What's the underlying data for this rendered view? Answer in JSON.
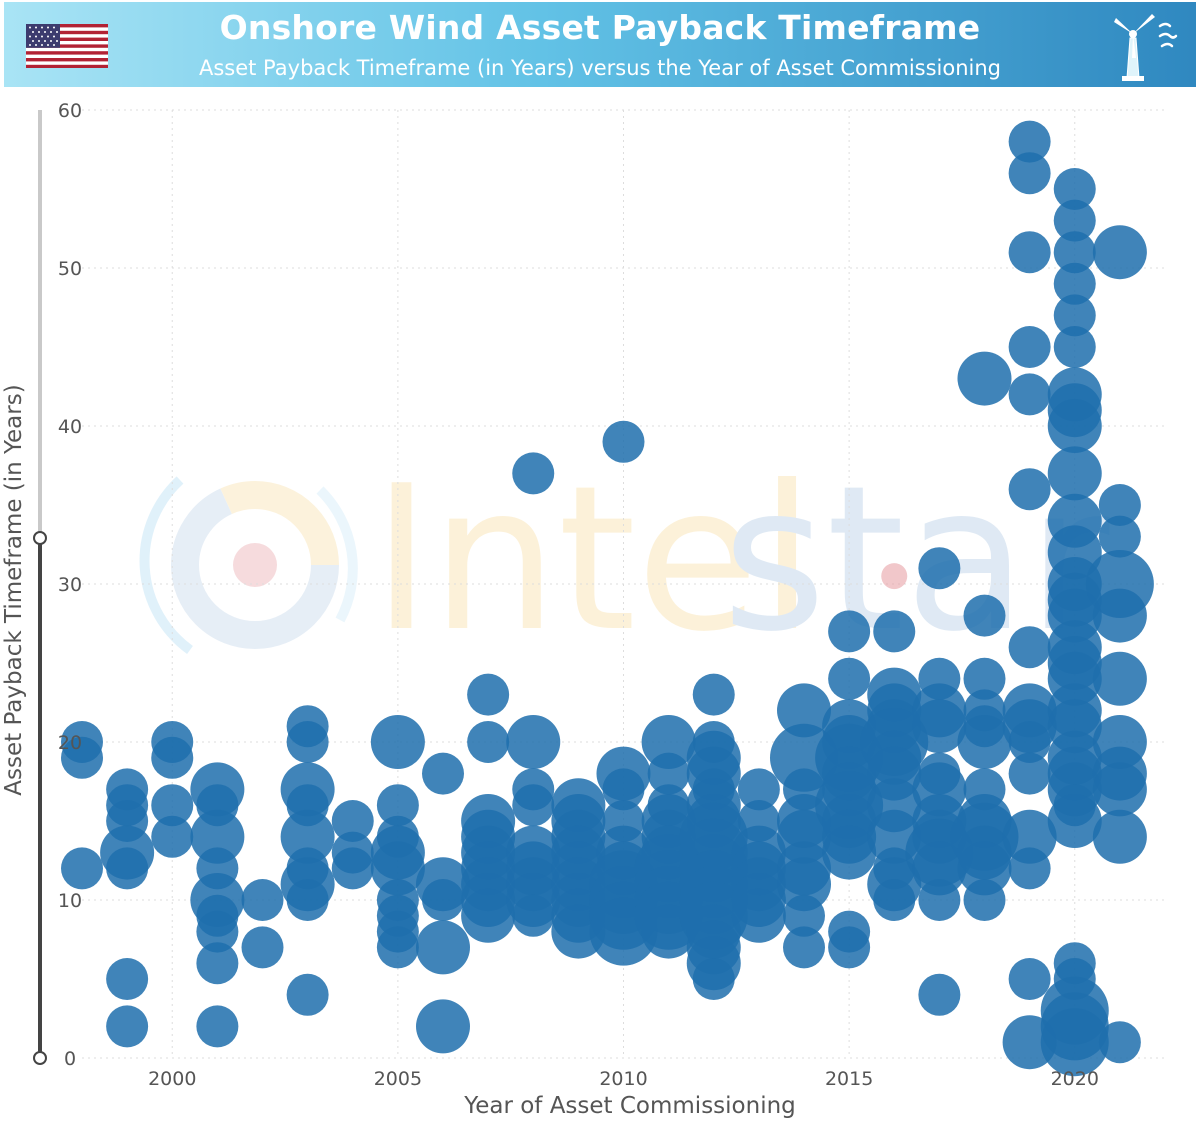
{
  "header": {
    "title": "Onshore Wind Asset Payback Timeframe",
    "subtitle": "Asset Payback Timeframe (in Years) versus the Year of Asset Commissioning",
    "flag_icon": "us-flag-icon",
    "logo_icon": "wind-turbine-icon"
  },
  "watermark": {
    "text_a": "Intel",
    "text_b": "star"
  },
  "colors": {
    "bubble": "#1f6fad",
    "header_left": "#a9e4f5",
    "header_right": "#2f88c0"
  },
  "chart_data": {
    "type": "scatter",
    "title": "Onshore Wind Asset Payback Timeframe",
    "subtitle": "Asset Payback Timeframe (in Years) versus the Year of Asset Commissioning",
    "xlabel": "Year of Asset Commissioning",
    "ylabel": "Asset Payback Timeframe (in Years)",
    "xlim": [
      1998,
      2022
    ],
    "ylim": [
      0,
      60
    ],
    "xticks": [
      "2000",
      "2005",
      "2010",
      "2015",
      "2020"
    ],
    "yticks": [
      "0",
      "10",
      "20",
      "30",
      "40",
      "50",
      "60"
    ],
    "grid": true,
    "marker_size_note": "bubble size varies by asset",
    "points": [
      [
        1998,
        20,
        2
      ],
      [
        1998,
        19,
        2
      ],
      [
        1998,
        12,
        2
      ],
      [
        1999,
        17,
        2
      ],
      [
        1999,
        16,
        2
      ],
      [
        1999,
        15,
        2
      ],
      [
        1999,
        13,
        3
      ],
      [
        1999,
        12,
        2
      ],
      [
        1999,
        5,
        2
      ],
      [
        1999,
        2,
        2
      ],
      [
        2000,
        20,
        2
      ],
      [
        2000,
        19,
        2
      ],
      [
        2000,
        16,
        2
      ],
      [
        2000,
        14,
        2
      ],
      [
        2001,
        17,
        3
      ],
      [
        2001,
        16,
        2
      ],
      [
        2001,
        14,
        3
      ],
      [
        2001,
        12,
        2
      ],
      [
        2001,
        10,
        3
      ],
      [
        2001,
        9,
        2
      ],
      [
        2001,
        8,
        2
      ],
      [
        2001,
        6,
        2
      ],
      [
        2001,
        2,
        2
      ],
      [
        2002,
        10,
        2
      ],
      [
        2002,
        7,
        2
      ],
      [
        2003,
        21,
        2
      ],
      [
        2003,
        20,
        2
      ],
      [
        2003,
        17,
        3
      ],
      [
        2003,
        16,
        2
      ],
      [
        2003,
        14,
        3
      ],
      [
        2003,
        12,
        2
      ],
      [
        2003,
        11,
        3
      ],
      [
        2003,
        10,
        2
      ],
      [
        2003,
        4,
        2
      ],
      [
        2004,
        15,
        2
      ],
      [
        2004,
        13,
        2
      ],
      [
        2004,
        12,
        2
      ],
      [
        2005,
        20,
        3
      ],
      [
        2005,
        16,
        2
      ],
      [
        2005,
        14,
        2
      ],
      [
        2005,
        13,
        3
      ],
      [
        2005,
        12,
        3
      ],
      [
        2005,
        10,
        2
      ],
      [
        2005,
        9,
        2
      ],
      [
        2005,
        8,
        2
      ],
      [
        2005,
        7,
        2
      ],
      [
        2006,
        18,
        2
      ],
      [
        2006,
        11,
        3
      ],
      [
        2006,
        10,
        2
      ],
      [
        2006,
        7,
        3
      ],
      [
        2006,
        2,
        3
      ],
      [
        2007,
        23,
        2
      ],
      [
        2007,
        20,
        2
      ],
      [
        2007,
        15,
        3
      ],
      [
        2007,
        14,
        3
      ],
      [
        2007,
        13,
        3
      ],
      [
        2007,
        12,
        3
      ],
      [
        2007,
        11,
        3
      ],
      [
        2007,
        10,
        3
      ],
      [
        2007,
        9,
        3
      ],
      [
        2008,
        37,
        2
      ],
      [
        2008,
        20,
        3
      ],
      [
        2008,
        17,
        2
      ],
      [
        2008,
        16,
        2
      ],
      [
        2008,
        13,
        3
      ],
      [
        2008,
        12,
        3
      ],
      [
        2008,
        11,
        3
      ],
      [
        2008,
        10,
        3
      ],
      [
        2008,
        9,
        2
      ],
      [
        2009,
        16,
        3
      ],
      [
        2009,
        15,
        3
      ],
      [
        2009,
        14,
        3
      ],
      [
        2009,
        13,
        3
      ],
      [
        2009,
        12,
        3
      ],
      [
        2009,
        11,
        3
      ],
      [
        2009,
        10,
        3
      ],
      [
        2009,
        9,
        3
      ],
      [
        2009,
        8,
        3
      ],
      [
        2010,
        39,
        2
      ],
      [
        2010,
        18,
        3
      ],
      [
        2010,
        17,
        2
      ],
      [
        2010,
        15,
        2
      ],
      [
        2010,
        13,
        3
      ],
      [
        2010,
        12,
        3
      ],
      [
        2010,
        11,
        4
      ],
      [
        2010,
        10,
        4
      ],
      [
        2010,
        9,
        4
      ],
      [
        2010,
        8,
        4
      ],
      [
        2011,
        20,
        3
      ],
      [
        2011,
        18,
        2
      ],
      [
        2011,
        16,
        2
      ],
      [
        2011,
        15,
        3
      ],
      [
        2011,
        14,
        3
      ],
      [
        2011,
        13,
        3
      ],
      [
        2011,
        12,
        4
      ],
      [
        2011,
        11,
        4
      ],
      [
        2011,
        10,
        4
      ],
      [
        2011,
        9,
        4
      ],
      [
        2011,
        8,
        3
      ],
      [
        2012,
        23,
        2
      ],
      [
        2012,
        20,
        2
      ],
      [
        2012,
        19,
        3
      ],
      [
        2012,
        18,
        3
      ],
      [
        2012,
        17,
        2
      ],
      [
        2012,
        16,
        3
      ],
      [
        2012,
        15,
        3
      ],
      [
        2012,
        14,
        4
      ],
      [
        2012,
        13,
        4
      ],
      [
        2012,
        12,
        4
      ],
      [
        2012,
        11,
        4
      ],
      [
        2012,
        10,
        4
      ],
      [
        2012,
        9,
        4
      ],
      [
        2012,
        8,
        3
      ],
      [
        2012,
        7,
        3
      ],
      [
        2012,
        6,
        3
      ],
      [
        2012,
        5,
        2
      ],
      [
        2013,
        17,
        2
      ],
      [
        2013,
        15,
        2
      ],
      [
        2013,
        13,
        3
      ],
      [
        2013,
        12,
        3
      ],
      [
        2013,
        11,
        3
      ],
      [
        2013,
        10,
        3
      ],
      [
        2013,
        9,
        3
      ],
      [
        2014,
        22,
        3
      ],
      [
        2014,
        19,
        4
      ],
      [
        2014,
        17,
        2
      ],
      [
        2014,
        15,
        3
      ],
      [
        2014,
        14,
        3
      ],
      [
        2014,
        12,
        3
      ],
      [
        2014,
        11,
        3
      ],
      [
        2014,
        9,
        2
      ],
      [
        2014,
        7,
        2
      ],
      [
        2015,
        27,
        2
      ],
      [
        2015,
        24,
        2
      ],
      [
        2015,
        21,
        3
      ],
      [
        2015,
        20,
        3
      ],
      [
        2015,
        19,
        4
      ],
      [
        2015,
        18,
        3
      ],
      [
        2015,
        17,
        3
      ],
      [
        2015,
        16,
        4
      ],
      [
        2015,
        15,
        3
      ],
      [
        2015,
        14,
        3
      ],
      [
        2015,
        13,
        3
      ],
      [
        2015,
        8,
        2
      ],
      [
        2015,
        7,
        2
      ],
      [
        2016,
        30.5,
        1
      ],
      [
        2016,
        27,
        2
      ],
      [
        2016,
        23,
        3
      ],
      [
        2016,
        22,
        3
      ],
      [
        2016,
        21,
        3
      ],
      [
        2016,
        20,
        4
      ],
      [
        2016,
        19,
        3
      ],
      [
        2016,
        18,
        3
      ],
      [
        2016,
        16,
        3
      ],
      [
        2016,
        14,
        3
      ],
      [
        2016,
        12,
        2
      ],
      [
        2016,
        11,
        3
      ],
      [
        2016,
        10,
        2
      ],
      [
        2017,
        31,
        2
      ],
      [
        2017,
        24,
        2
      ],
      [
        2017,
        22,
        3
      ],
      [
        2017,
        21,
        3
      ],
      [
        2017,
        18,
        2
      ],
      [
        2017,
        17,
        3
      ],
      [
        2017,
        15,
        3
      ],
      [
        2017,
        14,
        3
      ],
      [
        2017,
        13,
        4
      ],
      [
        2017,
        12,
        3
      ],
      [
        2017,
        10,
        2
      ],
      [
        2017,
        4,
        2
      ],
      [
        2018,
        43,
        3
      ],
      [
        2018,
        28,
        2
      ],
      [
        2018,
        24,
        2
      ],
      [
        2018,
        22,
        2
      ],
      [
        2018,
        21,
        2
      ],
      [
        2018,
        20,
        3
      ],
      [
        2018,
        17,
        2
      ],
      [
        2018,
        15,
        3
      ],
      [
        2018,
        14,
        4
      ],
      [
        2018,
        13,
        3
      ],
      [
        2018,
        12,
        3
      ],
      [
        2018,
        10,
        2
      ],
      [
        2019,
        58,
        2
      ],
      [
        2019,
        56,
        2
      ],
      [
        2019,
        51,
        2
      ],
      [
        2019,
        45,
        2
      ],
      [
        2019,
        42,
        2
      ],
      [
        2019,
        36,
        2
      ],
      [
        2019,
        26,
        2
      ],
      [
        2019,
        22,
        3
      ],
      [
        2019,
        21,
        3
      ],
      [
        2019,
        20,
        2
      ],
      [
        2019,
        18,
        2
      ],
      [
        2019,
        14,
        3
      ],
      [
        2019,
        12,
        2
      ],
      [
        2019,
        5,
        2
      ],
      [
        2019,
        1,
        3
      ],
      [
        2020,
        55,
        2
      ],
      [
        2020,
        53,
        2
      ],
      [
        2020,
        51,
        2
      ],
      [
        2020,
        49,
        2
      ],
      [
        2020,
        47,
        2
      ],
      [
        2020,
        45,
        2
      ],
      [
        2020,
        42,
        3
      ],
      [
        2020,
        41,
        3
      ],
      [
        2020,
        40,
        3
      ],
      [
        2020,
        37,
        3
      ],
      [
        2020,
        34,
        3
      ],
      [
        2020,
        32,
        3
      ],
      [
        2020,
        30,
        3
      ],
      [
        2020,
        29,
        3
      ],
      [
        2020,
        28,
        3
      ],
      [
        2020,
        26,
        3
      ],
      [
        2020,
        25,
        3
      ],
      [
        2020,
        24,
        3
      ],
      [
        2020,
        22,
        3
      ],
      [
        2020,
        21,
        3
      ],
      [
        2020,
        19,
        3
      ],
      [
        2020,
        18,
        3
      ],
      [
        2020,
        17,
        3
      ],
      [
        2020,
        16,
        2
      ],
      [
        2020,
        15,
        3
      ],
      [
        2020,
        6,
        2
      ],
      [
        2020,
        5,
        2
      ],
      [
        2020,
        3,
        4
      ],
      [
        2020,
        2,
        4
      ],
      [
        2020,
        1,
        4
      ],
      [
        2021,
        51,
        3
      ],
      [
        2021,
        35,
        2
      ],
      [
        2021,
        33,
        2
      ],
      [
        2021,
        30,
        4
      ],
      [
        2021,
        28,
        3
      ],
      [
        2021,
        24,
        3
      ],
      [
        2021,
        20,
        3
      ],
      [
        2021,
        18,
        3
      ],
      [
        2021,
        17,
        3
      ],
      [
        2021,
        14,
        3
      ],
      [
        2021,
        1,
        2
      ]
    ]
  }
}
